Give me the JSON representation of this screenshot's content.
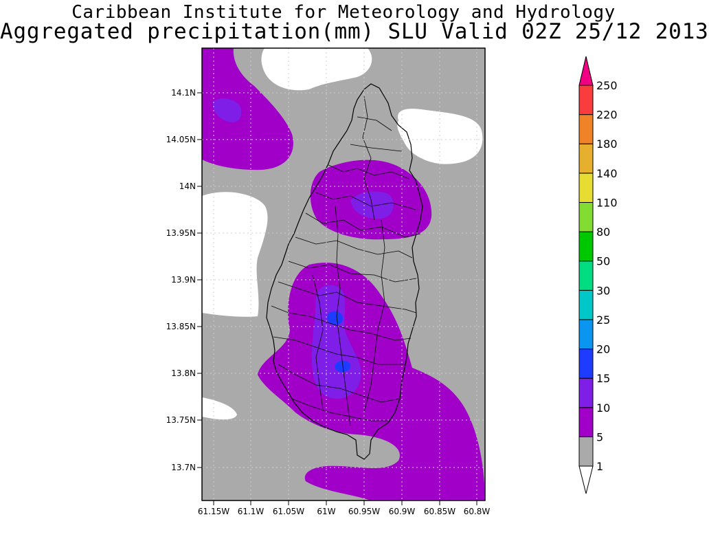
{
  "title": {
    "line1": "Caribbean Institute for Meteorology and Hydrology",
    "line2": "Aggregated precipitation(mm) SLU Valid 02Z 25/12 2013"
  },
  "map": {
    "region": "Saint Lucia",
    "variable": "Aggregated precipitation",
    "units": "mm",
    "lon_range": [
      -61.165,
      -60.79
    ],
    "lat_range": [
      13.665,
      14.145
    ],
    "grid": true,
    "x_ticks": [
      "61.15W",
      "61.1W",
      "61.05W",
      "61W",
      "60.95W",
      "60.9W",
      "60.85W",
      "60.8W"
    ],
    "y_ticks": [
      "14.1N",
      "14.05N",
      "14N",
      "13.95N",
      "13.9N",
      "13.85N",
      "13.8N",
      "13.75N",
      "13.7N"
    ]
  },
  "colorbar": {
    "labels": [
      "1",
      "5",
      "10",
      "15",
      "20",
      "25",
      "30",
      "50",
      "80",
      "110",
      "140",
      "180",
      "220",
      "250"
    ],
    "colors": [
      "#aaaaaa",
      "#a000c8",
      "#7f1ee6",
      "#1e3cff",
      "#0a96f0",
      "#00c8c8",
      "#00dc82",
      "#00c800",
      "#82dc32",
      "#e6dc32",
      "#e6af2d",
      "#f08228",
      "#fa3c3c",
      "#f00082"
    ],
    "below_color": "#ffffff",
    "above_color": "#f00082"
  }
}
